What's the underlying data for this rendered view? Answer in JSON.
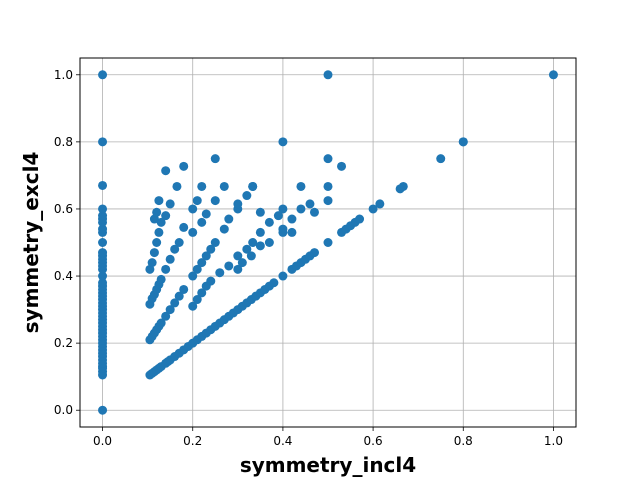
{
  "chart_data": {
    "type": "scatter",
    "title": "",
    "xlabel": "symmetry_incl4",
    "ylabel": "symmetry_excl4",
    "xlim": [
      -0.05,
      1.05
    ],
    "ylim": [
      -0.05,
      1.05
    ],
    "xticks": [
      0.0,
      0.2,
      0.4,
      0.6,
      0.8,
      1.0
    ],
    "yticks": [
      0.0,
      0.2,
      0.4,
      0.6,
      0.8,
      1.0
    ],
    "xtick_labels": [
      "0.0",
      "0.2",
      "0.4",
      "0.6",
      "0.8",
      "1.0"
    ],
    "ytick_labels": [
      "0.0",
      "0.2",
      "0.4",
      "0.6",
      "0.8",
      "1.0"
    ],
    "grid": true,
    "marker_color": "#1f77b4",
    "points": [
      [
        0.0,
        0.0
      ],
      [
        0.0,
        0.105
      ],
      [
        0.0,
        0.115
      ],
      [
        0.0,
        0.125
      ],
      [
        0.0,
        0.13
      ],
      [
        0.0,
        0.14
      ],
      [
        0.0,
        0.15
      ],
      [
        0.0,
        0.16
      ],
      [
        0.0,
        0.17
      ],
      [
        0.0,
        0.18
      ],
      [
        0.0,
        0.19
      ],
      [
        0.0,
        0.2
      ],
      [
        0.0,
        0.21
      ],
      [
        0.0,
        0.22
      ],
      [
        0.0,
        0.23
      ],
      [
        0.0,
        0.24
      ],
      [
        0.0,
        0.25
      ],
      [
        0.0,
        0.26
      ],
      [
        0.0,
        0.27
      ],
      [
        0.0,
        0.28
      ],
      [
        0.0,
        0.29
      ],
      [
        0.0,
        0.3
      ],
      [
        0.0,
        0.31
      ],
      [
        0.0,
        0.32
      ],
      [
        0.0,
        0.33
      ],
      [
        0.0,
        0.34
      ],
      [
        0.0,
        0.35
      ],
      [
        0.0,
        0.36
      ],
      [
        0.0,
        0.37
      ],
      [
        0.0,
        0.38
      ],
      [
        0.0,
        0.4
      ],
      [
        0.0,
        0.42
      ],
      [
        0.0,
        0.43
      ],
      [
        0.0,
        0.44
      ],
      [
        0.0,
        0.45
      ],
      [
        0.0,
        0.46
      ],
      [
        0.0,
        0.47
      ],
      [
        0.0,
        0.5
      ],
      [
        0.0,
        0.53
      ],
      [
        0.0,
        0.54
      ],
      [
        0.0,
        0.56
      ],
      [
        0.0,
        0.57
      ],
      [
        0.0,
        0.58
      ],
      [
        0.0,
        0.6
      ],
      [
        0.0,
        0.67
      ],
      [
        0.0,
        0.8
      ],
      [
        0.0,
        1.0
      ],
      [
        0.105,
        0.105
      ],
      [
        0.11,
        0.11
      ],
      [
        0.115,
        0.115
      ],
      [
        0.12,
        0.12
      ],
      [
        0.125,
        0.125
      ],
      [
        0.13,
        0.13
      ],
      [
        0.14,
        0.14
      ],
      [
        0.145,
        0.145
      ],
      [
        0.15,
        0.15
      ],
      [
        0.16,
        0.16
      ],
      [
        0.17,
        0.17
      ],
      [
        0.18,
        0.18
      ],
      [
        0.19,
        0.19
      ],
      [
        0.2,
        0.2
      ],
      [
        0.21,
        0.21
      ],
      [
        0.22,
        0.22
      ],
      [
        0.23,
        0.23
      ],
      [
        0.24,
        0.24
      ],
      [
        0.25,
        0.25
      ],
      [
        0.26,
        0.26
      ],
      [
        0.27,
        0.27
      ],
      [
        0.28,
        0.28
      ],
      [
        0.29,
        0.29
      ],
      [
        0.3,
        0.3
      ],
      [
        0.31,
        0.31
      ],
      [
        0.32,
        0.32
      ],
      [
        0.33,
        0.33
      ],
      [
        0.34,
        0.34
      ],
      [
        0.35,
        0.35
      ],
      [
        0.36,
        0.36
      ],
      [
        0.37,
        0.37
      ],
      [
        0.38,
        0.38
      ],
      [
        0.4,
        0.4
      ],
      [
        0.42,
        0.42
      ],
      [
        0.43,
        0.43
      ],
      [
        0.44,
        0.44
      ],
      [
        0.45,
        0.45
      ],
      [
        0.46,
        0.46
      ],
      [
        0.47,
        0.47
      ],
      [
        0.5,
        0.5
      ],
      [
        0.53,
        0.53
      ],
      [
        0.54,
        0.54
      ],
      [
        0.55,
        0.55
      ],
      [
        0.56,
        0.56
      ],
      [
        0.57,
        0.57
      ],
      [
        0.6,
        0.6
      ],
      [
        0.615,
        0.615
      ],
      [
        0.667,
        0.667
      ],
      [
        0.75,
        0.75
      ],
      [
        0.8,
        0.8
      ],
      [
        1.0,
        1.0
      ],
      [
        0.105,
        0.21
      ],
      [
        0.11,
        0.22
      ],
      [
        0.115,
        0.23
      ],
      [
        0.12,
        0.24
      ],
      [
        0.125,
        0.25
      ],
      [
        0.13,
        0.26
      ],
      [
        0.14,
        0.28
      ],
      [
        0.15,
        0.3
      ],
      [
        0.16,
        0.32
      ],
      [
        0.17,
        0.34
      ],
      [
        0.18,
        0.36
      ],
      [
        0.2,
        0.4
      ],
      [
        0.21,
        0.42
      ],
      [
        0.22,
        0.44
      ],
      [
        0.23,
        0.46
      ],
      [
        0.24,
        0.48
      ],
      [
        0.25,
        0.5
      ],
      [
        0.27,
        0.54
      ],
      [
        0.28,
        0.57
      ],
      [
        0.3,
        0.6
      ],
      [
        0.333,
        0.667
      ],
      [
        0.4,
        0.8
      ],
      [
        0.5,
        1.0
      ],
      [
        0.105,
        0.316
      ],
      [
        0.11,
        0.333
      ],
      [
        0.115,
        0.345
      ],
      [
        0.12,
        0.36
      ],
      [
        0.125,
        0.375
      ],
      [
        0.13,
        0.39
      ],
      [
        0.14,
        0.42
      ],
      [
        0.15,
        0.45
      ],
      [
        0.16,
        0.48
      ],
      [
        0.17,
        0.5
      ],
      [
        0.18,
        0.545
      ],
      [
        0.2,
        0.6
      ],
      [
        0.21,
        0.625
      ],
      [
        0.22,
        0.667
      ],
      [
        0.25,
        0.75
      ],
      [
        0.105,
        0.42
      ],
      [
        0.11,
        0.44
      ],
      [
        0.115,
        0.47
      ],
      [
        0.12,
        0.5
      ],
      [
        0.125,
        0.53
      ],
      [
        0.13,
        0.56
      ],
      [
        0.14,
        0.58
      ],
      [
        0.15,
        0.615
      ],
      [
        0.165,
        0.667
      ],
      [
        0.18,
        0.727
      ],
      [
        0.115,
        0.57
      ],
      [
        0.12,
        0.59
      ],
      [
        0.125,
        0.625
      ],
      [
        0.14,
        0.714
      ],
      [
        0.2,
        0.31
      ],
      [
        0.21,
        0.33
      ],
      [
        0.22,
        0.35
      ],
      [
        0.23,
        0.37
      ],
      [
        0.24,
        0.385
      ],
      [
        0.26,
        0.41
      ],
      [
        0.28,
        0.43
      ],
      [
        0.3,
        0.46
      ],
      [
        0.32,
        0.48
      ],
      [
        0.333,
        0.5
      ],
      [
        0.35,
        0.53
      ],
      [
        0.37,
        0.56
      ],
      [
        0.39,
        0.58
      ],
      [
        0.4,
        0.6
      ],
      [
        0.44,
        0.667
      ],
      [
        0.5,
        0.75
      ],
      [
        0.2,
        0.53
      ],
      [
        0.22,
        0.56
      ],
      [
        0.23,
        0.585
      ],
      [
        0.25,
        0.625
      ],
      [
        0.27,
        0.667
      ],
      [
        0.3,
        0.42
      ],
      [
        0.31,
        0.44
      ],
      [
        0.33,
        0.46
      ],
      [
        0.35,
        0.49
      ],
      [
        0.37,
        0.5
      ],
      [
        0.4,
        0.54
      ],
      [
        0.42,
        0.57
      ],
      [
        0.44,
        0.6
      ],
      [
        0.46,
        0.615
      ],
      [
        0.5,
        0.667
      ],
      [
        0.53,
        0.727
      ],
      [
        0.3,
        0.615
      ],
      [
        0.32,
        0.64
      ],
      [
        0.333,
        0.667
      ],
      [
        0.35,
        0.59
      ],
      [
        0.4,
        0.53
      ],
      [
        0.42,
        0.53
      ],
      [
        0.47,
        0.59
      ],
      [
        0.5,
        0.625
      ],
      [
        0.66,
        0.66
      ],
      [
        0.8,
        0.8
      ]
    ]
  }
}
